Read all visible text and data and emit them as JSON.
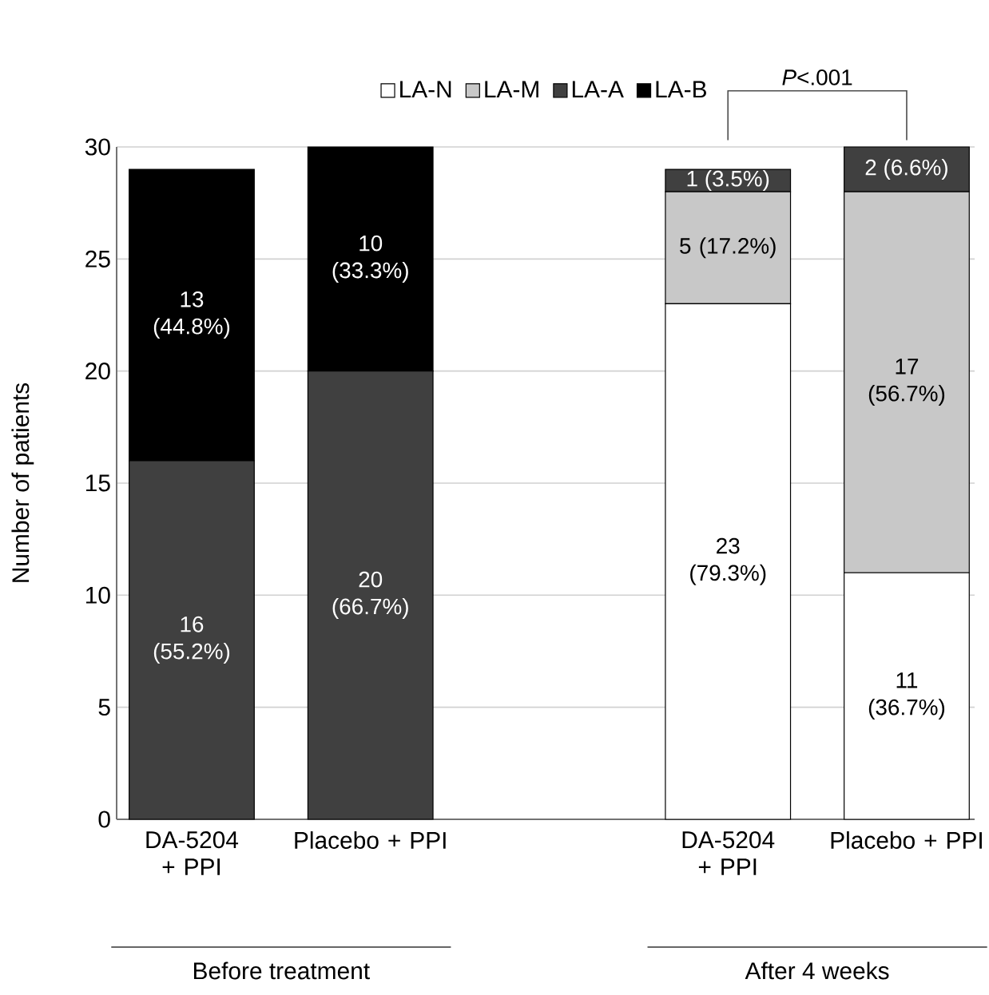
{
  "chart_data": {
    "type": "bar",
    "stacked": true,
    "ylabel": "Number of patients",
    "categories": [
      "DA-5204 + PPI",
      "Placebo + PPI",
      null,
      "DA-5204 + PPI",
      "Placebo + PPI"
    ],
    "series": [
      {
        "name": "LA-N",
        "color": "#ffffff",
        "values": [
          null,
          null,
          null,
          23,
          11
        ],
        "value_labels": [
          null,
          null,
          null,
          "23 (79.3%)",
          "11 (36.7%)"
        ]
      },
      {
        "name": "LA-M",
        "color": "#c8c8c8",
        "values": [
          null,
          null,
          null,
          5,
          17
        ],
        "value_labels": [
          null,
          null,
          null,
          "5 (17.2%)",
          "17 (56.7%)"
        ]
      },
      {
        "name": "LA-A",
        "color": "#404040",
        "values": [
          16,
          20,
          null,
          1,
          2
        ],
        "value_labels": [
          "16 (55.2%)",
          "20 (66.7%)",
          null,
          "1 (3.5%)",
          "2 (6.6%)"
        ]
      },
      {
        "name": "LA-B",
        "color": "#000000",
        "values": [
          13,
          10,
          null,
          null,
          null
        ],
        "value_labels": [
          "13 (44.8%)",
          "10 (33.3%)",
          null,
          null,
          null
        ]
      }
    ],
    "ylim": [
      0,
      30
    ],
    "yticks": [
      0,
      5,
      10,
      15,
      20,
      25,
      30
    ],
    "grid": "y",
    "legend": "top",
    "annotations": [
      "Before treatment",
      "After 4 weeks",
      "*P*<.001"
    ]
  }
}
